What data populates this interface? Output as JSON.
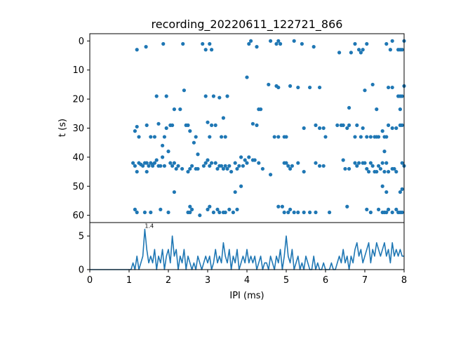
{
  "chart_data": [
    {
      "type": "scatter",
      "title": "recording_20220611_122721_866",
      "ylabel": "t (s)",
      "xlabel": "",
      "xlim": [
        0,
        8
      ],
      "ylim": [
        62.5,
        -2.5
      ],
      "y_inverted": true,
      "yticks": [
        0,
        10,
        20,
        30,
        40,
        50,
        60
      ],
      "grid": false,
      "color": "#1f77b4",
      "points": [
        [
          1.2,
          3
        ],
        [
          1.43,
          2
        ],
        [
          1.87,
          1
        ],
        [
          2.37,
          1
        ],
        [
          2.87,
          1
        ],
        [
          2.95,
          3
        ],
        [
          3.05,
          1
        ],
        [
          3.1,
          3
        ],
        [
          4.05,
          1
        ],
        [
          4.1,
          0
        ],
        [
          4.25,
          2
        ],
        [
          4.6,
          0
        ],
        [
          4.75,
          1
        ],
        [
          4.8,
          0
        ],
        [
          4.85,
          1
        ],
        [
          5.2,
          0
        ],
        [
          5.4,
          1
        ],
        [
          5.7,
          2
        ],
        [
          6.35,
          4
        ],
        [
          6.65,
          4
        ],
        [
          6.75,
          1
        ],
        [
          6.85,
          3
        ],
        [
          6.9,
          4
        ],
        [
          6.95,
          3
        ],
        [
          7.05,
          1
        ],
        [
          7.55,
          1
        ],
        [
          7.65,
          3
        ],
        [
          7.7,
          0
        ],
        [
          7.85,
          3
        ],
        [
          7.95,
          3
        ],
        [
          8.0,
          0
        ],
        [
          7.9,
          3
        ],
        [
          4.0,
          12.5
        ],
        [
          4.3,
          23.5
        ],
        [
          4.35,
          23.5
        ],
        [
          4.55,
          15
        ],
        [
          4.75,
          15.5
        ],
        [
          4.8,
          16
        ],
        [
          5.1,
          15.5
        ],
        [
          5.3,
          16
        ],
        [
          5.6,
          16
        ],
        [
          5.85,
          16
        ],
        [
          6.6,
          23
        ],
        [
          7.0,
          17
        ],
        [
          7.2,
          15
        ],
        [
          7.6,
          16
        ],
        [
          7.7,
          16
        ],
        [
          7.85,
          19
        ],
        [
          7.9,
          19
        ],
        [
          7.95,
          19
        ],
        [
          8.0,
          15.5
        ],
        [
          7.3,
          23.5
        ],
        [
          7.9,
          23.5
        ],
        [
          1.7,
          19
        ],
        [
          1.95,
          19
        ],
        [
          2.15,
          23.5
        ],
        [
          2.3,
          23.5
        ],
        [
          2.4,
          17
        ],
        [
          2.95,
          19
        ],
        [
          3.15,
          19
        ],
        [
          3.3,
          19.5
        ],
        [
          3.4,
          26.5
        ],
        [
          3.5,
          19
        ],
        [
          1.2,
          29.5
        ],
        [
          1.15,
          31
        ],
        [
          1.25,
          33
        ],
        [
          1.45,
          29
        ],
        [
          1.55,
          33
        ],
        [
          1.65,
          33
        ],
        [
          1.75,
          28.5
        ],
        [
          1.9,
          33
        ],
        [
          1.85,
          36
        ],
        [
          1.95,
          30
        ],
        [
          2.05,
          29
        ],
        [
          2.1,
          29
        ],
        [
          2.0,
          38
        ],
        [
          2.45,
          29
        ],
        [
          2.5,
          29
        ],
        [
          2.55,
          31
        ],
        [
          2.65,
          35
        ],
        [
          2.7,
          33
        ],
        [
          2.75,
          39
        ],
        [
          3.0,
          28
        ],
        [
          3.1,
          29
        ],
        [
          3.05,
          33
        ],
        [
          3.35,
          33
        ],
        [
          3.45,
          33
        ],
        [
          3.2,
          29
        ],
        [
          4.15,
          28.5
        ],
        [
          4.25,
          29
        ],
        [
          4.7,
          33
        ],
        [
          4.8,
          33
        ],
        [
          4.95,
          33
        ],
        [
          5.0,
          33
        ],
        [
          5.45,
          30
        ],
        [
          5.75,
          29
        ],
        [
          5.85,
          30
        ],
        [
          5.95,
          30
        ],
        [
          6.0,
          33
        ],
        [
          6.3,
          29
        ],
        [
          6.4,
          29
        ],
        [
          6.45,
          29
        ],
        [
          6.55,
          30
        ],
        [
          6.6,
          29
        ],
        [
          6.75,
          33
        ],
        [
          6.8,
          29
        ],
        [
          6.9,
          33
        ],
        [
          6.95,
          30
        ],
        [
          7.05,
          33
        ],
        [
          7.15,
          33
        ],
        [
          7.25,
          33
        ],
        [
          7.3,
          33
        ],
        [
          7.35,
          33
        ],
        [
          7.45,
          31
        ],
        [
          7.5,
          33
        ],
        [
          7.55,
          33
        ],
        [
          7.6,
          29
        ],
        [
          7.7,
          30
        ],
        [
          7.8,
          30
        ],
        [
          7.9,
          29
        ],
        [
          7.95,
          29
        ],
        [
          7.5,
          38
        ],
        [
          1.1,
          42
        ],
        [
          1.15,
          43
        ],
        [
          1.2,
          45
        ],
        [
          1.25,
          42
        ],
        [
          1.3,
          42.5
        ],
        [
          1.35,
          43
        ],
        [
          1.4,
          42
        ],
        [
          1.45,
          42
        ],
        [
          1.5,
          43
        ],
        [
          1.55,
          42
        ],
        [
          1.6,
          43
        ],
        [
          1.65,
          42
        ],
        [
          1.7,
          41
        ],
        [
          1.75,
          43
        ],
        [
          1.8,
          43
        ],
        [
          1.85,
          40
        ],
        [
          1.9,
          43
        ],
        [
          1.45,
          45
        ],
        [
          1.6,
          42.5
        ],
        [
          2.05,
          42
        ],
        [
          2.1,
          43
        ],
        [
          2.15,
          42
        ],
        [
          2.2,
          44
        ],
        [
          2.25,
          43
        ],
        [
          2.35,
          44
        ],
        [
          2.5,
          45
        ],
        [
          2.55,
          44
        ],
        [
          2.6,
          43
        ],
        [
          2.7,
          44
        ],
        [
          2.75,
          44
        ],
        [
          2.9,
          43
        ],
        [
          2.95,
          42
        ],
        [
          3.0,
          41
        ],
        [
          3.05,
          43
        ],
        [
          3.1,
          42
        ],
        [
          3.2,
          42
        ],
        [
          3.25,
          44
        ],
        [
          3.3,
          43
        ],
        [
          3.35,
          43
        ],
        [
          3.4,
          44
        ],
        [
          3.45,
          43
        ],
        [
          3.5,
          44
        ],
        [
          3.55,
          43
        ],
        [
          3.6,
          45
        ],
        [
          3.7,
          42
        ],
        [
          3.75,
          44
        ],
        [
          3.8,
          43
        ],
        [
          3.85,
          40
        ],
        [
          3.9,
          43
        ],
        [
          3.95,
          41
        ],
        [
          4.0,
          42
        ],
        [
          4.05,
          40
        ],
        [
          4.15,
          41
        ],
        [
          4.2,
          41
        ],
        [
          4.3,
          42
        ],
        [
          4.4,
          44
        ],
        [
          4.6,
          46
        ],
        [
          4.95,
          42
        ],
        [
          5.0,
          42
        ],
        [
          5.05,
          43
        ],
        [
          5.1,
          44
        ],
        [
          5.15,
          43
        ],
        [
          5.3,
          42
        ],
        [
          5.45,
          45
        ],
        [
          5.75,
          42
        ],
        [
          5.85,
          43
        ],
        [
          5.95,
          43
        ],
        [
          6.45,
          41
        ],
        [
          6.5,
          44
        ],
        [
          6.6,
          44
        ],
        [
          6.75,
          42
        ],
        [
          6.8,
          43
        ],
        [
          6.85,
          42
        ],
        [
          6.95,
          42
        ],
        [
          7.0,
          42
        ],
        [
          7.05,
          44
        ],
        [
          7.1,
          45
        ],
        [
          7.15,
          42
        ],
        [
          7.2,
          43
        ],
        [
          7.25,
          45
        ],
        [
          7.3,
          45
        ],
        [
          7.35,
          43
        ],
        [
          7.4,
          44
        ],
        [
          7.45,
          42
        ],
        [
          7.5,
          45
        ],
        [
          7.55,
          42
        ],
        [
          7.6,
          45
        ],
        [
          7.7,
          44
        ],
        [
          7.75,
          44
        ],
        [
          7.8,
          45
        ],
        [
          7.95,
          42
        ],
        [
          8.0,
          43
        ],
        [
          3.7,
          52
        ],
        [
          3.85,
          50
        ],
        [
          2.15,
          52
        ],
        [
          7.45,
          50
        ],
        [
          7.55,
          52
        ],
        [
          7.9,
          52
        ],
        [
          7.95,
          51
        ],
        [
          1.15,
          58
        ],
        [
          1.2,
          59
        ],
        [
          1.4,
          59
        ],
        [
          1.55,
          59
        ],
        [
          1.8,
          58
        ],
        [
          2.0,
          59
        ],
        [
          2.5,
          59
        ],
        [
          2.55,
          57
        ],
        [
          2.6,
          58
        ],
        [
          2.55,
          59
        ],
        [
          2.8,
          60
        ],
        [
          3.0,
          58
        ],
        [
          3.05,
          57
        ],
        [
          3.15,
          59
        ],
        [
          3.25,
          58
        ],
        [
          3.3,
          59
        ],
        [
          3.4,
          59
        ],
        [
          3.45,
          59
        ],
        [
          3.55,
          58
        ],
        [
          3.65,
          59
        ],
        [
          3.75,
          58
        ],
        [
          4.8,
          57
        ],
        [
          4.9,
          57
        ],
        [
          4.95,
          59
        ],
        [
          5.05,
          59
        ],
        [
          5.1,
          58
        ],
        [
          5.2,
          59
        ],
        [
          5.3,
          59
        ],
        [
          5.45,
          59
        ],
        [
          5.6,
          59
        ],
        [
          5.75,
          59
        ],
        [
          6.1,
          59
        ],
        [
          6.55,
          57
        ],
        [
          7.05,
          58
        ],
        [
          7.15,
          59
        ],
        [
          7.35,
          58
        ],
        [
          7.45,
          59
        ],
        [
          7.5,
          59
        ],
        [
          7.55,
          59
        ],
        [
          7.6,
          58
        ],
        [
          7.7,
          59
        ],
        [
          7.8,
          58
        ],
        [
          7.85,
          59
        ],
        [
          7.9,
          59
        ],
        [
          7.95,
          59
        ]
      ]
    },
    {
      "type": "line",
      "xlabel": "IPI (ms)",
      "ylabel": "",
      "xlim": [
        0,
        8
      ],
      "ylim": [
        0,
        7
      ],
      "xticks": [
        0,
        1,
        2,
        3,
        4,
        5,
        6,
        7,
        8
      ],
      "yticks": [
        0,
        5
      ],
      "grid": false,
      "color": "#1f77b4",
      "annotation": {
        "text": "1.4",
        "x": 1.4,
        "y": 6
      },
      "x": [
        0,
        1.0,
        1.05,
        1.1,
        1.15,
        1.2,
        1.25,
        1.3,
        1.35,
        1.4,
        1.45,
        1.5,
        1.55,
        1.6,
        1.65,
        1.7,
        1.75,
        1.8,
        1.85,
        1.9,
        1.95,
        2.0,
        2.05,
        2.1,
        2.15,
        2.2,
        2.25,
        2.3,
        2.35,
        2.4,
        2.45,
        2.5,
        2.55,
        2.6,
        2.65,
        2.7,
        2.75,
        2.8,
        2.85,
        2.9,
        2.95,
        3.0,
        3.05,
        3.1,
        3.15,
        3.2,
        3.25,
        3.3,
        3.35,
        3.4,
        3.45,
        3.5,
        3.55,
        3.6,
        3.65,
        3.7,
        3.75,
        3.8,
        3.85,
        3.9,
        3.95,
        4.0,
        4.05,
        4.1,
        4.15,
        4.2,
        4.25,
        4.3,
        4.35,
        4.4,
        4.45,
        4.5,
        4.55,
        4.6,
        4.65,
        4.7,
        4.75,
        4.8,
        4.85,
        4.9,
        4.95,
        5.0,
        5.05,
        5.1,
        5.15,
        5.2,
        5.25,
        5.3,
        5.35,
        5.4,
        5.45,
        5.5,
        5.55,
        5.6,
        5.65,
        5.7,
        5.75,
        5.8,
        5.85,
        5.9,
        5.95,
        6.0,
        6.05,
        6.1,
        6.15,
        6.2,
        6.25,
        6.3,
        6.35,
        6.4,
        6.45,
        6.5,
        6.55,
        6.6,
        6.65,
        6.7,
        6.75,
        6.8,
        6.85,
        6.9,
        6.95,
        7.0,
        7.05,
        7.1,
        7.15,
        7.2,
        7.25,
        7.3,
        7.35,
        7.4,
        7.45,
        7.5,
        7.55,
        7.6,
        7.65,
        7.7,
        7.75,
        7.8,
        7.85,
        7.9,
        7.95,
        8.0
      ],
      "y": [
        0,
        0,
        0,
        1,
        0,
        2,
        0,
        1,
        2,
        6,
        3,
        1,
        2,
        1,
        3,
        0,
        2,
        1,
        3,
        0,
        2,
        3,
        1,
        5,
        2,
        3,
        0,
        2,
        1,
        3,
        0,
        2,
        1,
        0,
        1,
        0,
        2,
        1,
        0,
        1,
        2,
        1,
        2,
        0,
        1,
        3,
        1,
        2,
        1,
        4,
        2,
        1,
        3,
        0,
        2,
        1,
        3,
        0,
        1,
        2,
        1,
        3,
        1,
        2,
        1,
        2,
        0,
        1,
        2,
        0,
        1,
        1,
        0,
        2,
        1,
        0,
        2,
        1,
        3,
        0,
        2,
        5,
        2,
        1,
        3,
        0,
        1,
        2,
        0,
        1,
        0,
        2,
        1,
        0,
        0,
        2,
        0,
        1,
        0,
        0,
        1,
        0,
        0,
        0,
        1,
        0,
        0,
        1,
        2,
        1,
        3,
        1,
        2,
        0,
        2,
        1,
        3,
        4,
        2,
        3,
        1,
        2,
        3,
        4,
        1,
        3,
        2,
        4,
        3,
        2,
        3,
        4,
        2,
        3,
        1,
        4,
        2,
        3,
        2,
        3,
        2,
        2
      ]
    }
  ]
}
